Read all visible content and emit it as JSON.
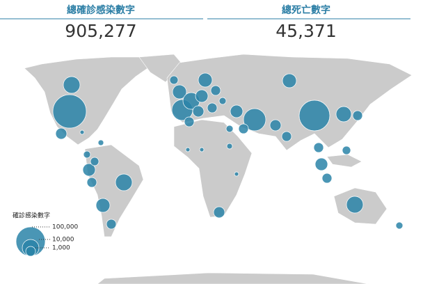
{
  "header": {
    "confirmed": {
      "title": "總確診感染數字",
      "value": "905,277"
    },
    "deaths": {
      "title": "總死亡數字",
      "value": "45,371"
    }
  },
  "legend": {
    "title": "確診感染數字",
    "labels": [
      "100,000",
      "10,000",
      "1,000"
    ]
  }
}
